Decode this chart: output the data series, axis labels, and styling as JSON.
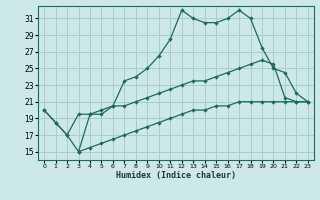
{
  "xlabel": "Humidex (Indice chaleur)",
  "bg_color": "#cce8e8",
  "grid_color": "#aacccc",
  "line_color": "#1a6b5a",
  "spine_color": "#1a6b5a",
  "xlim": [
    -0.5,
    23.5
  ],
  "ylim": [
    14,
    32.5
  ],
  "yticks": [
    15,
    17,
    19,
    21,
    23,
    25,
    27,
    29,
    31
  ],
  "xticks": [
    0,
    1,
    2,
    3,
    4,
    5,
    6,
    7,
    8,
    9,
    10,
    11,
    12,
    13,
    14,
    15,
    16,
    17,
    18,
    19,
    20,
    21,
    22,
    23
  ],
  "line1_x": [
    0,
    1,
    2,
    3,
    4,
    5,
    6,
    7,
    8,
    9,
    10,
    11,
    12,
    13,
    14,
    15,
    16,
    17,
    18,
    19,
    20,
    21,
    22,
    23
  ],
  "line1_y": [
    20,
    18.5,
    17,
    15,
    19.5,
    19.5,
    20.5,
    23.5,
    24,
    25,
    26.5,
    28.5,
    32,
    31,
    30.5,
    30.5,
    31,
    32,
    31,
    27.5,
    25,
    24.5,
    22,
    21
  ],
  "line2_x": [
    0,
    1,
    2,
    3,
    4,
    5,
    6,
    7,
    8,
    9,
    10,
    11,
    12,
    13,
    14,
    15,
    16,
    17,
    18,
    19,
    20,
    21,
    22,
    23
  ],
  "line2_y": [
    20,
    18.5,
    17,
    19.5,
    19.5,
    20,
    20.5,
    20.5,
    21,
    21.5,
    22,
    22.5,
    23,
    23.5,
    23.5,
    24,
    24.5,
    25,
    25.5,
    26,
    25.5,
    21.5,
    21,
    21
  ],
  "line3_x": [
    3,
    4,
    5,
    6,
    7,
    8,
    9,
    10,
    11,
    12,
    13,
    14,
    15,
    16,
    17,
    18,
    19,
    20,
    21,
    22,
    23
  ],
  "line3_y": [
    15,
    15.5,
    16,
    16.5,
    17,
    17.5,
    18,
    18.5,
    19,
    19.5,
    20,
    20,
    20.5,
    20.5,
    21,
    21,
    21,
    21,
    21,
    21,
    21
  ]
}
